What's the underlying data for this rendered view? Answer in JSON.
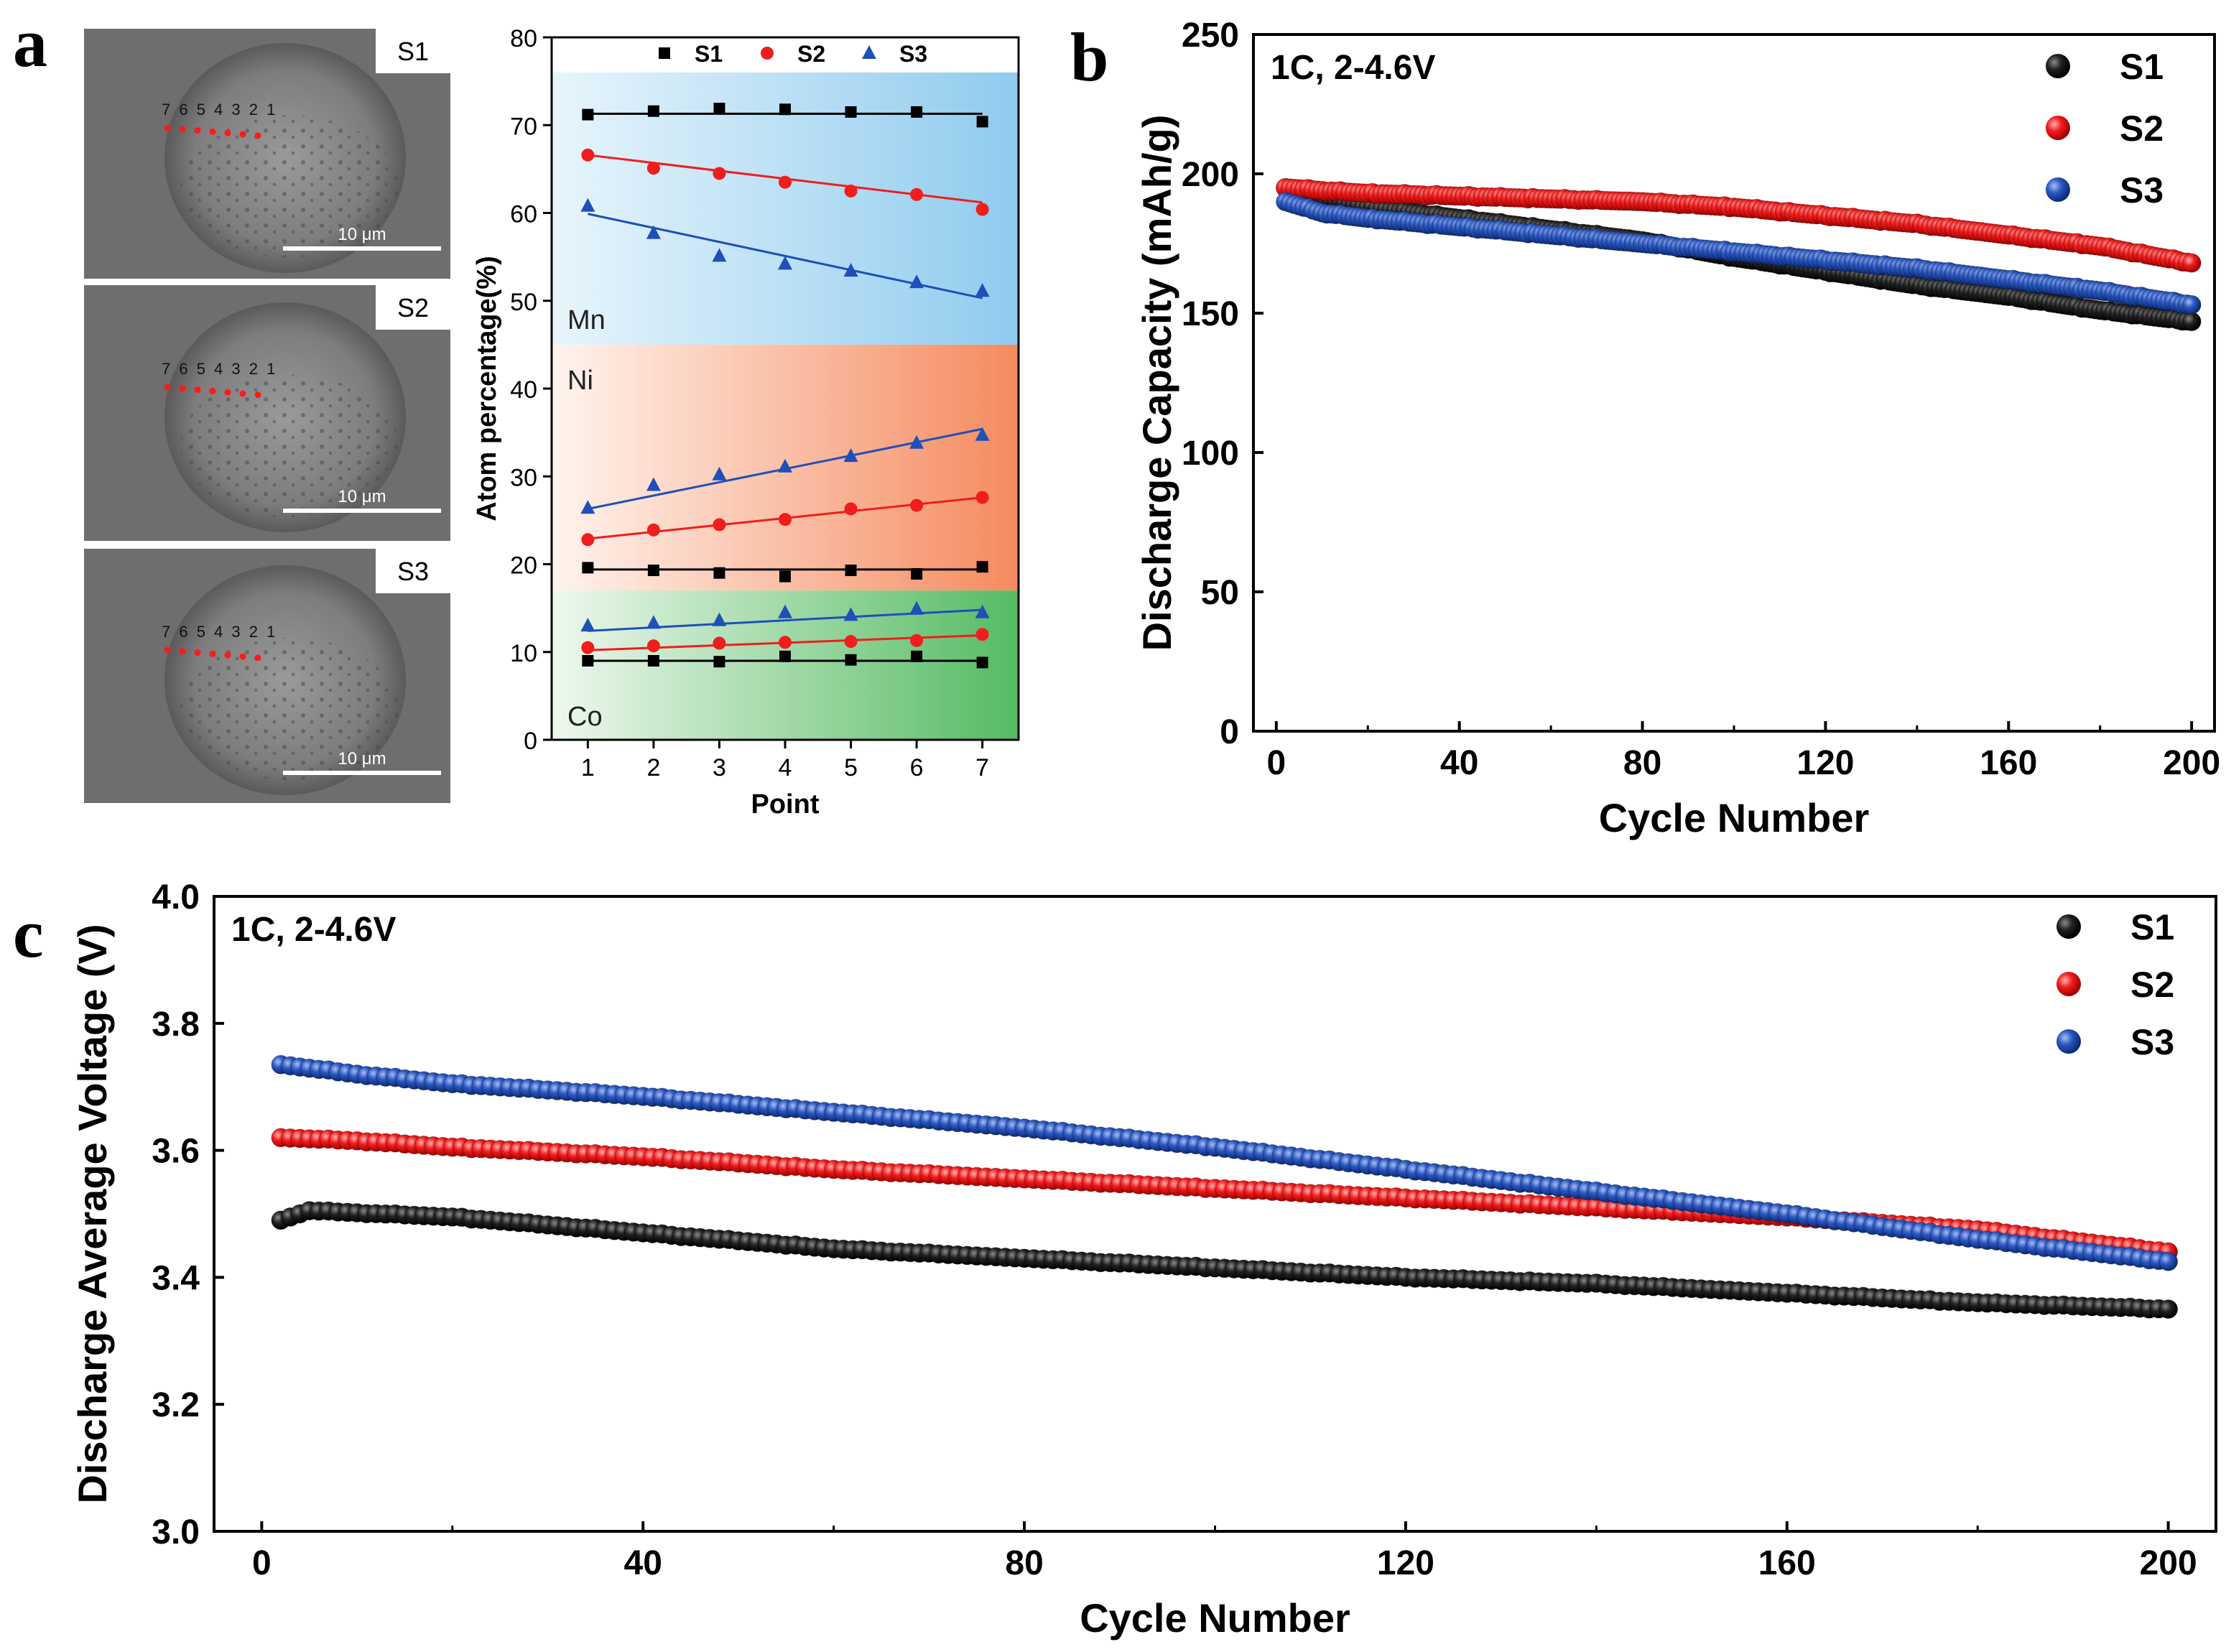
{
  "panel_labels": {
    "a": "a",
    "b": "b",
    "c": "c"
  },
  "sem": {
    "images": [
      {
        "label": "S1",
        "scale": "10 μm",
        "points": "7 6 5 4 3 2 1"
      },
      {
        "label": "S2",
        "scale": "10 μm",
        "points": "7 6 5 4 3 2 1"
      },
      {
        "label": "S3",
        "scale": "10 μm",
        "points": "7 6 5 4 3 2 1"
      }
    ],
    "marker_color": "#ff1a1a"
  },
  "chart_data": [
    {
      "id": "a-composition",
      "type": "scatter",
      "xlabel": "Point",
      "ylabel": "Atom percentage(%)",
      "xlim": [
        0.45,
        7.55
      ],
      "ylim": [
        0,
        80
      ],
      "xticks": [
        1,
        2,
        3,
        4,
        5,
        6,
        7
      ],
      "yticks": [
        0,
        10,
        20,
        30,
        40,
        50,
        60,
        70,
        80
      ],
      "regions": [
        {
          "name": "Mn",
          "range": [
            45,
            76
          ],
          "color": "#5fb3e6"
        },
        {
          "name": "Ni",
          "range": [
            17,
            45
          ],
          "color": "#f47a4a"
        },
        {
          "name": "Co",
          "range": [
            0,
            17
          ],
          "color": "#3fb34f"
        }
      ],
      "legend": [
        "S1",
        "S2",
        "S3"
      ],
      "colors": {
        "S1": "#000000",
        "S2": "#f01d1d",
        "S3": "#1f4fb8"
      },
      "groups": [
        {
          "element": "Mn",
          "series": [
            {
              "name": "S1",
              "values": [
                71.2,
                71.6,
                71.9,
                71.8,
                71.5,
                71.5,
                70.4
              ],
              "fit": [
                71.3,
                71.3
              ]
            },
            {
              "name": "S2",
              "values": [
                66.6,
                65.1,
                64.5,
                63.5,
                62.5,
                62.1,
                60.4
              ],
              "fit": [
                66.6,
                61.2
              ]
            },
            {
              "name": "S3",
              "values": [
                60.8,
                57.7,
                55.1,
                54.2,
                53.4,
                52.1,
                51.1
              ],
              "fit": [
                59.9,
                50.3
              ]
            }
          ]
        },
        {
          "element": "Ni",
          "series": [
            {
              "name": "S1",
              "values": [
                19.6,
                19.3,
                19.0,
                18.6,
                19.3,
                18.9,
                19.7
              ],
              "fit": [
                19.4,
                19.4
              ]
            },
            {
              "name": "S2",
              "values": [
                22.8,
                23.9,
                24.5,
                25.1,
                26.3,
                26.7,
                27.6
              ],
              "fit": [
                22.9,
                27.6
              ]
            },
            {
              "name": "S3",
              "values": [
                26.4,
                29.0,
                30.2,
                31.1,
                32.3,
                33.8,
                34.7
              ],
              "fit": [
                26.3,
                35.4
              ]
            }
          ]
        },
        {
          "element": "Co",
          "series": [
            {
              "name": "S1",
              "values": [
                9.0,
                9.0,
                8.9,
                9.5,
                9.1,
                9.5,
                8.8
              ],
              "fit": [
                9.0,
                9.0
              ]
            },
            {
              "name": "S2",
              "values": [
                10.5,
                10.7,
                11.0,
                11.1,
                11.2,
                11.3,
                12.0
              ],
              "fit": [
                10.2,
                11.9
              ]
            },
            {
              "name": "S3",
              "values": [
                13.0,
                13.3,
                13.6,
                14.5,
                14.2,
                14.9,
                14.5
              ],
              "fit": [
                12.4,
                14.8
              ]
            }
          ]
        }
      ]
    },
    {
      "id": "b-capacity",
      "type": "scatter",
      "annotation": "1C, 2-4.6V",
      "xlabel": "Cycle Number",
      "ylabel": "Discharge Capacity (mAh/g)",
      "xlim": [
        -5,
        205
      ],
      "ylim": [
        0,
        250
      ],
      "xticks": [
        0,
        40,
        80,
        120,
        160,
        200
      ],
      "yticks": [
        0,
        50,
        100,
        150,
        200,
        250
      ],
      "legend": [
        "S1",
        "S2",
        "S3"
      ],
      "colors": {
        "S1": "#000000",
        "S2": "#f01d1d",
        "S3": "#1f4fb8"
      },
      "series": [
        {
          "name": "S1",
          "x": [
            2,
            10,
            20,
            40,
            60,
            80,
            100,
            120,
            140,
            160,
            180,
            200
          ],
          "y": [
            195,
            191,
            188,
            184,
            180,
            176,
            170,
            165,
            160,
            156,
            151,
            147
          ]
        },
        {
          "name": "S2",
          "x": [
            2,
            10,
            20,
            40,
            60,
            80,
            100,
            120,
            140,
            160,
            180,
            200
          ],
          "y": [
            195,
            194,
            193,
            192,
            191,
            190,
            188,
            185,
            182,
            178,
            174,
            168
          ]
        },
        {
          "name": "S3",
          "x": [
            2,
            10,
            20,
            40,
            60,
            80,
            100,
            120,
            140,
            160,
            180,
            200
          ],
          "y": [
            190,
            186,
            184,
            181,
            178,
            175,
            172,
            169,
            166,
            162,
            158,
            153
          ]
        }
      ]
    },
    {
      "id": "c-voltage",
      "type": "scatter",
      "annotation": "1C, 2-4.6V",
      "xlabel": "Cycle Number",
      "ylabel": "Discharge Average Voltage (V)",
      "xlim": [
        -5,
        205
      ],
      "ylim": [
        3.0,
        4.0
      ],
      "xticks": [
        0,
        40,
        80,
        120,
        160,
        200
      ],
      "yticks": [
        3.0,
        3.2,
        3.4,
        3.6,
        3.8,
        4.0
      ],
      "legend": [
        "S1",
        "S2",
        "S3"
      ],
      "colors": {
        "S1": "#000000",
        "S2": "#f01d1d",
        "S3": "#1f4fb8"
      },
      "series": [
        {
          "name": "S1",
          "x": [
            2,
            5,
            20,
            40,
            60,
            80,
            100,
            120,
            140,
            160,
            180,
            200
          ],
          "y": [
            3.49,
            3.505,
            3.495,
            3.47,
            3.445,
            3.43,
            3.415,
            3.4,
            3.39,
            3.375,
            3.36,
            3.35
          ]
        },
        {
          "name": "S2",
          "x": [
            2,
            10,
            20,
            40,
            60,
            80,
            100,
            120,
            140,
            160,
            180,
            200
          ],
          "y": [
            3.62,
            3.615,
            3.605,
            3.59,
            3.57,
            3.555,
            3.54,
            3.525,
            3.51,
            3.495,
            3.475,
            3.44
          ]
        },
        {
          "name": "S3",
          "x": [
            2,
            10,
            20,
            40,
            60,
            80,
            100,
            120,
            140,
            160,
            180,
            200
          ],
          "y": [
            3.735,
            3.72,
            3.705,
            3.685,
            3.66,
            3.635,
            3.605,
            3.57,
            3.535,
            3.5,
            3.46,
            3.425
          ]
        }
      ]
    }
  ]
}
